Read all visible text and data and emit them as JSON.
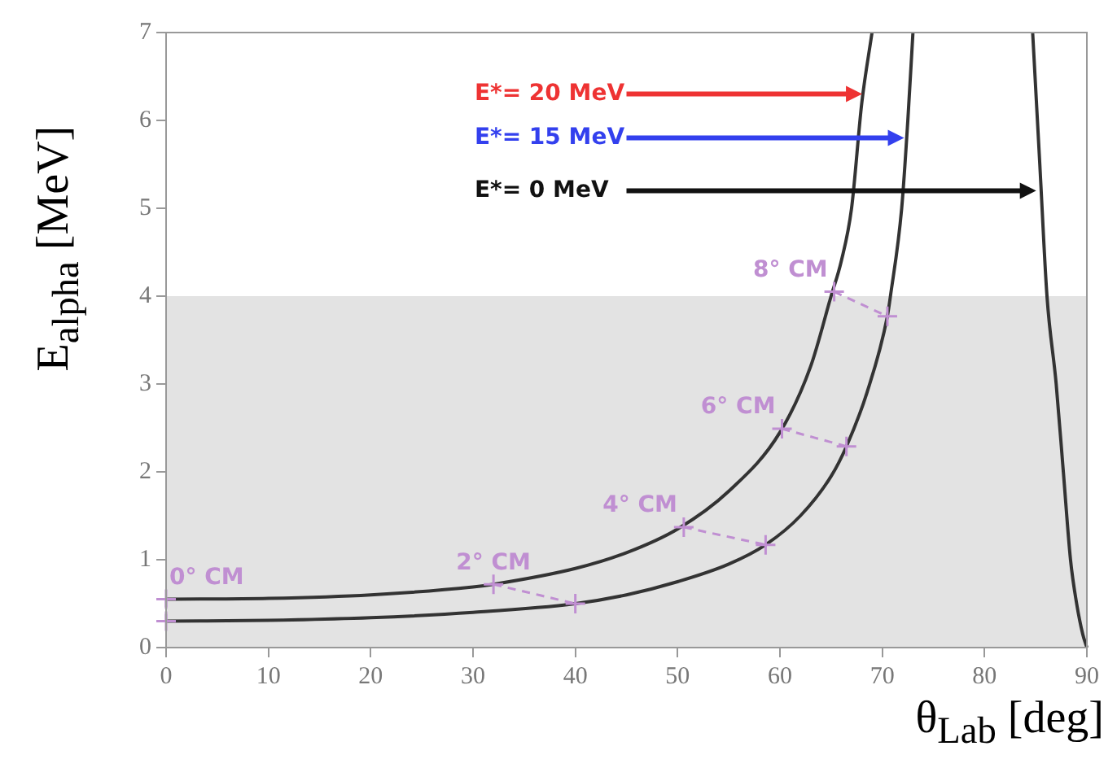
{
  "chart_data": {
    "type": "line",
    "xlabel": "θ$_{Lab}$ [deg]",
    "ylabel": "E$_{alpha}$ [MeV]",
    "xlim": [
      0,
      90
    ],
    "xticks": [
      0,
      10,
      20,
      30,
      40,
      50,
      60,
      70,
      80,
      90
    ],
    "ylim": [
      0,
      7
    ],
    "yticks": [
      0,
      1,
      2,
      3,
      4,
      5,
      6,
      7
    ],
    "grid": false,
    "legend": false,
    "marker": "none",
    "line_style": "solid",
    "series": [
      {
        "color": "#333333",
        "x": [
          0,
          10,
          20,
          30,
          32,
          40,
          45,
          50,
          55,
          60,
          63,
          65,
          66,
          67,
          68,
          69
        ],
        "values": [
          0.55,
          0.56,
          0.6,
          0.69,
          0.72,
          0.9,
          1.08,
          1.35,
          1.78,
          2.45,
          3.2,
          4.0,
          4.4,
          5.0,
          6.2,
          7.0
        ]
      },
      {
        "color": "#333333",
        "x": [
          0,
          10,
          20,
          30,
          40,
          45,
          50,
          55,
          58.6,
          62,
          65,
          66.5,
          68.5,
          70.5,
          70.8,
          71.9,
          72.5,
          73
        ],
        "values": [
          0.3,
          0.31,
          0.34,
          0.4,
          0.5,
          0.6,
          0.75,
          0.95,
          1.17,
          1.5,
          1.95,
          2.29,
          2.9,
          3.77,
          4.0,
          5.0,
          6.0,
          7.0
        ]
      },
      {
        "color": "#333333",
        "x": [
          84.7,
          85.4,
          86.1,
          87,
          87.7,
          88.4,
          89,
          89.6,
          90
        ],
        "values": [
          7,
          5.5,
          4,
          3,
          2,
          1,
          0.5,
          0.15,
          0
        ]
      },
      {
        "color": "#c08fd2",
        "x": [
          0,
          0
        ],
        "values": [
          0.55,
          0.3
        ],
        "line_style": "dashed",
        "marker": "cross"
      },
      {
        "color": "#c08fd2",
        "x": [
          32,
          40
        ],
        "values": [
          0.72,
          0.5
        ],
        "line_style": "dashed",
        "marker": "cross"
      },
      {
        "color": "#c08fd2",
        "x": [
          50.6,
          58.6
        ],
        "values": [
          1.37,
          1.17
        ],
        "line_style": "dashed",
        "marker": "cross"
      },
      {
        "color": "#c08fd2",
        "x": [
          60.2,
          66.5
        ],
        "values": [
          2.49,
          2.29
        ],
        "line_style": "dashed",
        "marker": "cross"
      },
      {
        "color": "#c08fd2",
        "x": [
          65.3,
          70.5
        ],
        "values": [
          4.05,
          3.77
        ],
        "line_style": "dashed",
        "marker": "cross"
      }
    ],
    "bands": [
      {
        "axis": "y",
        "from": 0,
        "to": 4,
        "color": "#e3e3e3"
      }
    ],
    "annotations": [
      {
        "text": "E*= 20 MeV",
        "x": 68.2,
        "y": 6.3
      },
      {
        "text": "E*= 15 MeV",
        "x": 72.3,
        "y": 5.8
      },
      {
        "text": "E*= 0 MeV",
        "x": 85.2,
        "y": 5.2
      },
      {
        "text": "0° CM",
        "x": 0,
        "y": 0.55
      },
      {
        "text": "2° CM",
        "x": 32,
        "y": 0.72
      },
      {
        "text": "4° CM",
        "x": 50.6,
        "y": 1.37
      },
      {
        "text": "6° CM",
        "x": 60.2,
        "y": 2.49
      },
      {
        "text": "8° CM",
        "x": 65.3,
        "y": 4.05
      }
    ]
  }
}
